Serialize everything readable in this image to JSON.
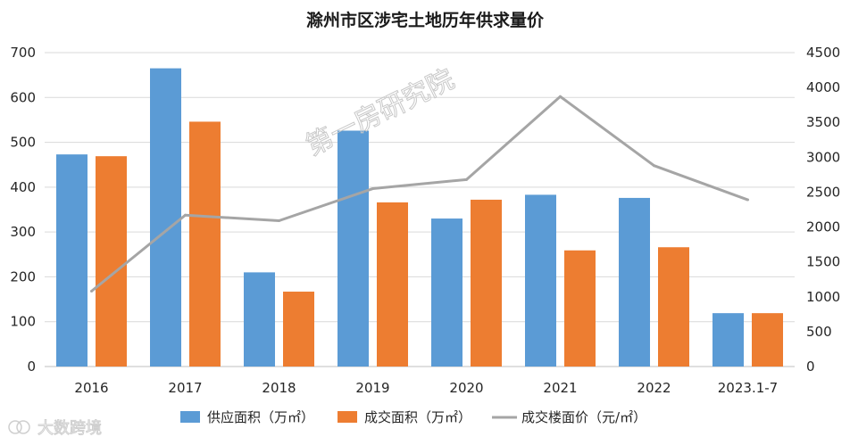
{
  "chart_data": {
    "type": "bar",
    "title": "滁州市区涉宅土地历年供求量价",
    "categories": [
      "2016",
      "2017",
      "2018",
      "2019",
      "2020",
      "2021",
      "2022",
      "2023.1-7"
    ],
    "series": [
      {
        "name": "供应面积（万㎡）",
        "kind": "bar",
        "axis": "left",
        "color": "#5b9bd5",
        "values": [
          473,
          665,
          210,
          526,
          330,
          383,
          376,
          119
        ]
      },
      {
        "name": "成交面积（万㎡）",
        "kind": "bar",
        "axis": "left",
        "color": "#ed7d31",
        "values": [
          469,
          546,
          167,
          366,
          372,
          259,
          266,
          119
        ]
      },
      {
        "name": "成交楼面价（元/㎡）",
        "kind": "line",
        "axis": "right",
        "color": "#a5a5a5",
        "values": [
          1080,
          2170,
          2090,
          2550,
          2680,
          3870,
          2880,
          2390
        ]
      }
    ],
    "y_left": {
      "min": 0,
      "max": 700,
      "step": 100
    },
    "y_right": {
      "min": 0,
      "max": 4500,
      "step": 500
    },
    "grid": true,
    "legend_position": "bottom"
  },
  "watermark": {
    "text": "第一房研究院"
  },
  "corner_mark": {
    "text": "大数跨境"
  }
}
